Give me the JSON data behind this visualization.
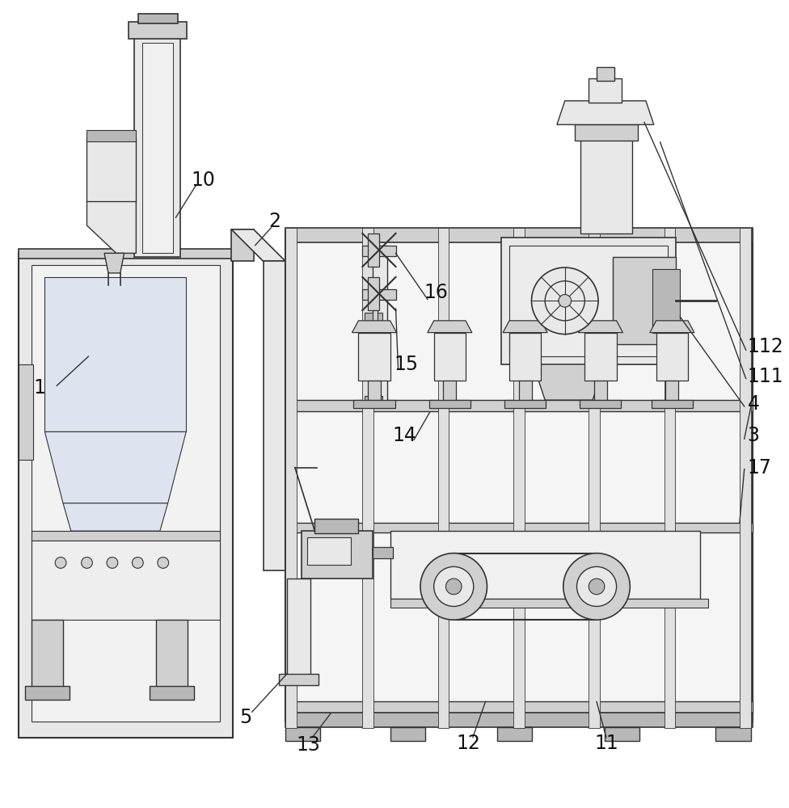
{
  "bg_color": "#ffffff",
  "line_color": "#333333",
  "lw": 1.0,
  "fill_white": "#ffffff",
  "fill_light": "#e8e8e8",
  "fill_mid": "#d0d0d0",
  "fill_dark": "#b8b8b8",
  "fill_blue": "#dde4f0",
  "fill_purple": "#e8e0f0"
}
